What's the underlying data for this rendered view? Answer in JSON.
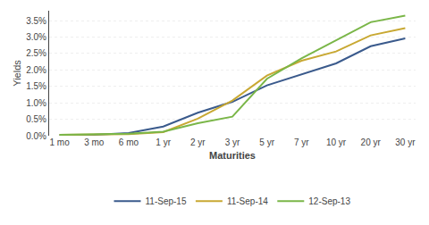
{
  "chart_data": {
    "type": "line",
    "xlabel": "Maturities",
    "ylabel": "Yields",
    "categories": [
      "1 mo",
      "3 mo",
      "6 mo",
      "1 yr",
      "2 yr",
      "3 yr",
      "5 yr",
      "7 yr",
      "10 yr",
      "20 yr",
      "30 yr"
    ],
    "series": [
      {
        "name": "11-Sep-15",
        "color": "#3a5a8c",
        "values": [
          0.02,
          0.03,
          0.08,
          0.28,
          0.7,
          1.03,
          1.53,
          1.87,
          2.2,
          2.72,
          2.96
        ]
      },
      {
        "name": "11-Sep-14",
        "color": "#c8a832",
        "values": [
          0.03,
          0.03,
          0.05,
          0.11,
          0.52,
          1.07,
          1.83,
          2.28,
          2.56,
          3.05,
          3.27
        ]
      },
      {
        "name": "12-Sep-13",
        "color": "#7ab648",
        "values": [
          0.03,
          0.04,
          0.06,
          0.12,
          0.38,
          0.58,
          1.73,
          2.35,
          2.9,
          3.45,
          3.65
        ]
      }
    ],
    "ylim": [
      0.0,
      3.8
    ],
    "yticks": [
      {
        "value": 0.0,
        "label": "0.0%"
      },
      {
        "value": 0.5,
        "label": "0.5%"
      },
      {
        "value": 1.0,
        "label": "1.0%"
      },
      {
        "value": 1.5,
        "label": "1.5%"
      },
      {
        "value": 2.0,
        "label": "2.0%"
      },
      {
        "value": 2.5,
        "label": "2.5%"
      },
      {
        "value": 3.0,
        "label": "3.0%"
      },
      {
        "value": 3.5,
        "label": "3.5%"
      }
    ],
    "grid": "y",
    "legend": "bottom"
  }
}
